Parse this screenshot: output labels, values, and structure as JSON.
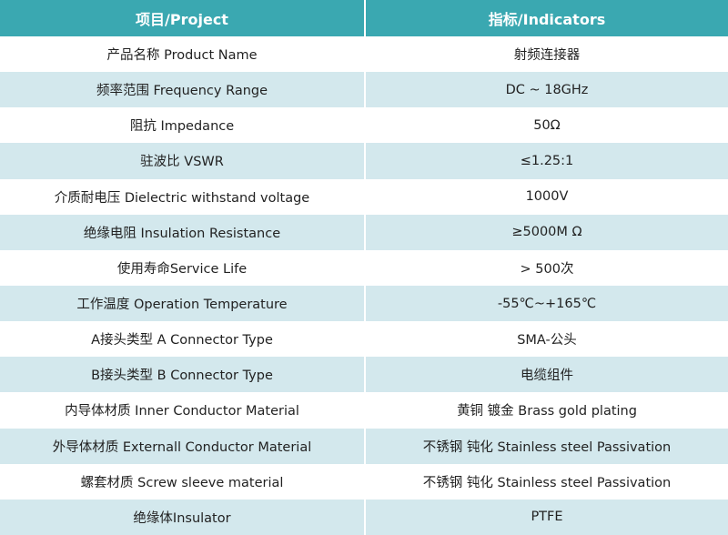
{
  "table": {
    "header": [
      "项目/Project",
      "指标/Indicators"
    ],
    "rows": [
      [
        "产品名称 Product Name",
        "射频连接器"
      ],
      [
        "频率范围 Frequency Range",
        "DC ~ 18GHz"
      ],
      [
        "阻抗 Impedance",
        "50Ω"
      ],
      [
        "驻波比 VSWR",
        "≤1.25:1"
      ],
      [
        "介质耐电压 Dielectric withstand voltage",
        "1000V"
      ],
      [
        "绝缘电阻 Insulation Resistance",
        "≥5000M Ω"
      ],
      [
        "使用寿命Service Life",
        "> 500次"
      ],
      [
        "工作温度 Operation Temperature",
        "-55℃~+165℃"
      ],
      [
        "A接头类型 A Connector Type",
        "SMA-公头"
      ],
      [
        "B接头类型 B Connector Type",
        "电缆组件"
      ],
      [
        "内导体材质 Inner Conductor Material",
        "黄铜 镀金 Brass gold plating"
      ],
      [
        "外导体材质 Externall Conductor Material",
        "不锈钢 钝化 Stainless steel Passivation"
      ],
      [
        "螺套材质 Screw sleeve material",
        "不锈钢 钝化 Stainless steel Passivation"
      ],
      [
        "绝缘体Insulator",
        "PTFE"
      ]
    ]
  }
}
